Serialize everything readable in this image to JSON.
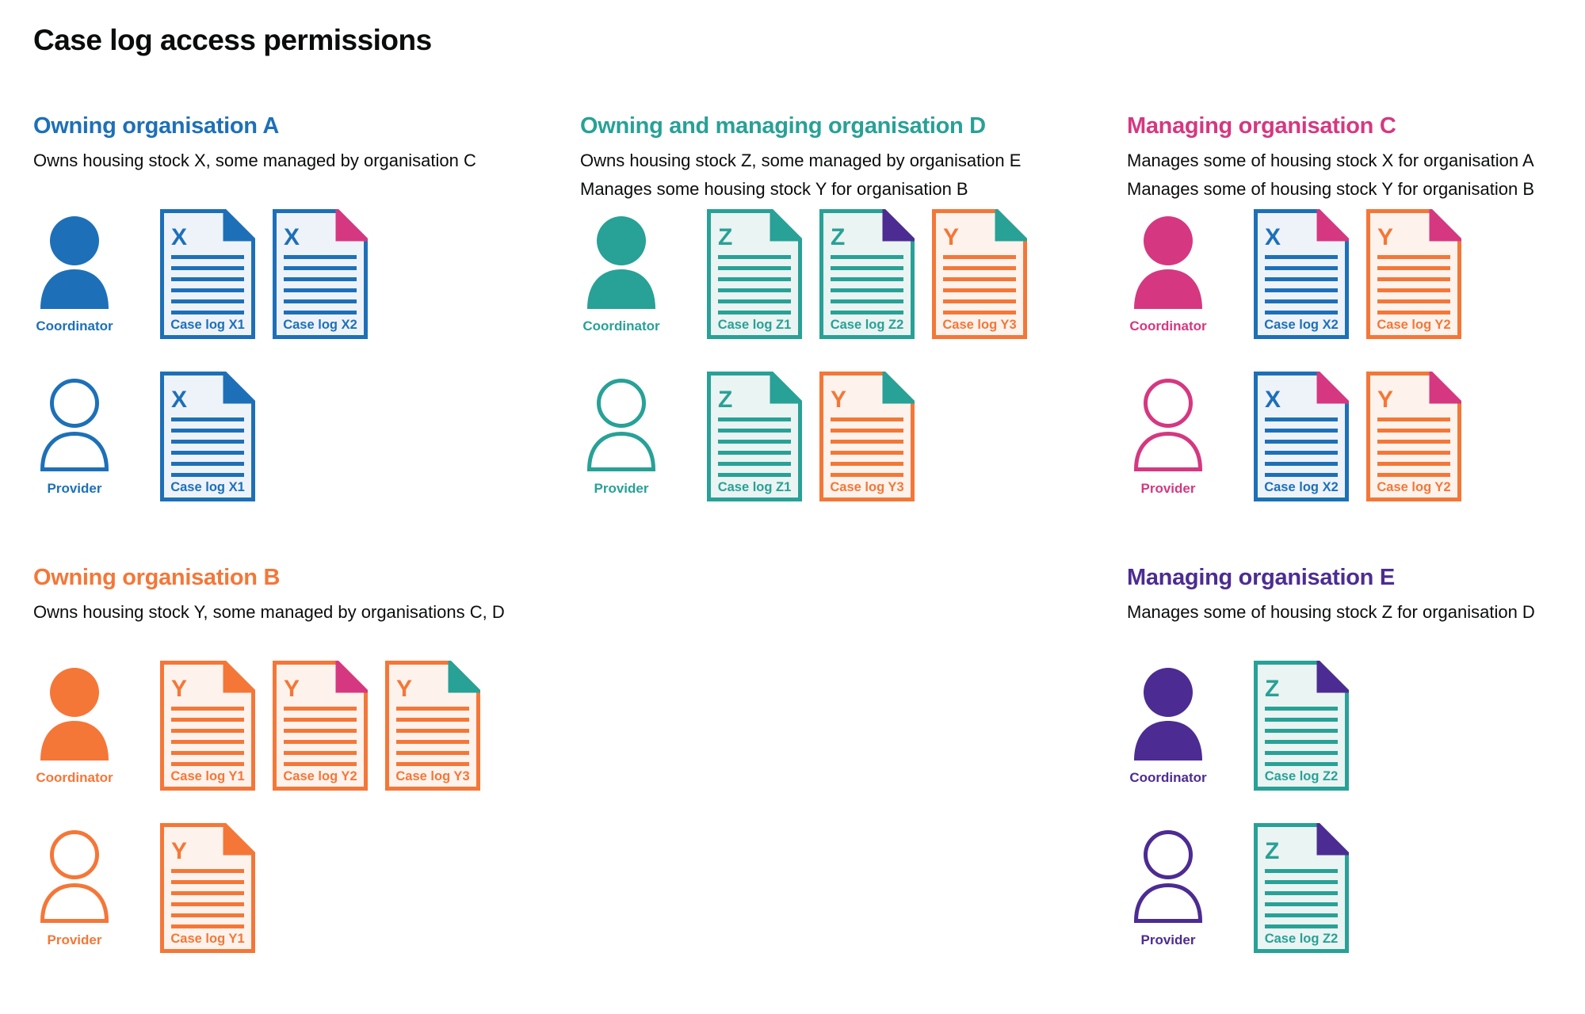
{
  "title": "Case log access permissions",
  "colors": {
    "blue": "#1d70b8",
    "orange": "#f47738",
    "teal": "#28a197",
    "pink": "#d53880",
    "purple": "#4c2c92",
    "text": "#0b0c0c"
  },
  "tints": {
    "blue": "#eef3fa",
    "orange": "#fdf3ec",
    "teal": "#eaf4f2"
  },
  "role_labels": {
    "coordinator": "Coordinator",
    "provider": "Provider"
  },
  "sections": [
    {
      "id": "owning-organisation-a",
      "title": "Owning organisation A",
      "color": "blue",
      "description": [
        "Owns housing stock X, some managed by organisation C"
      ],
      "grid": {
        "column": 0,
        "row": 0
      },
      "rows": [
        {
          "role": "coordinator",
          "documents": [
            {
              "letter": "X",
              "label": "Case log X1",
              "stock": "blue",
              "fold": "blue"
            },
            {
              "letter": "X",
              "label": "Case log X2",
              "stock": "blue",
              "fold": "pink"
            }
          ]
        },
        {
          "role": "provider",
          "documents": [
            {
              "letter": "X",
              "label": "Case log X1",
              "stock": "blue",
              "fold": "blue"
            }
          ]
        }
      ]
    },
    {
      "id": "owning-and-managing-organisation-d",
      "title": "Owning and managing organisation D",
      "color": "teal",
      "description": [
        "Owns housing stock Z, some managed by organisation E",
        "Manages some housing stock Y for organisation B"
      ],
      "grid": {
        "column": 1,
        "row": 0
      },
      "rows": [
        {
          "role": "coordinator",
          "documents": [
            {
              "letter": "Z",
              "label": "Case log Z1",
              "stock": "teal",
              "fold": "teal"
            },
            {
              "letter": "Z",
              "label": "Case log Z2",
              "stock": "teal",
              "fold": "purple"
            },
            {
              "letter": "Y",
              "label": "Case log Y3",
              "stock": "orange",
              "fold": "teal"
            }
          ]
        },
        {
          "role": "provider",
          "documents": [
            {
              "letter": "Z",
              "label": "Case log Z1",
              "stock": "teal",
              "fold": "teal"
            },
            {
              "letter": "Y",
              "label": "Case log Y3",
              "stock": "orange",
              "fold": "teal"
            }
          ]
        }
      ]
    },
    {
      "id": "managing-organisation-c",
      "title": "Managing organisation C",
      "color": "pink",
      "description": [
        "Manages some of housing stock X for organisation A",
        "Manages some of housing stock Y for organisation B"
      ],
      "grid": {
        "column": 2,
        "row": 0
      },
      "rows": [
        {
          "role": "coordinator",
          "documents": [
            {
              "letter": "X",
              "label": "Case log X2",
              "stock": "blue",
              "fold": "pink"
            },
            {
              "letter": "Y",
              "label": "Case log Y2",
              "stock": "orange",
              "fold": "pink"
            }
          ]
        },
        {
          "role": "provider",
          "documents": [
            {
              "letter": "X",
              "label": "Case log X2",
              "stock": "blue",
              "fold": "pink"
            },
            {
              "letter": "Y",
              "label": "Case log Y2",
              "stock": "orange",
              "fold": "pink"
            }
          ]
        }
      ]
    },
    {
      "id": "owning-organisation-b",
      "title": "Owning organisation B",
      "color": "orange",
      "description": [
        "Owns housing stock Y, some managed by organisations C, D"
      ],
      "grid": {
        "column": 0,
        "row": 1
      },
      "rows": [
        {
          "role": "coordinator",
          "documents": [
            {
              "letter": "Y",
              "label": "Case log Y1",
              "stock": "orange",
              "fold": "orange"
            },
            {
              "letter": "Y",
              "label": "Case log Y2",
              "stock": "orange",
              "fold": "pink"
            },
            {
              "letter": "Y",
              "label": "Case log Y3",
              "stock": "orange",
              "fold": "teal"
            }
          ]
        },
        {
          "role": "provider",
          "documents": [
            {
              "letter": "Y",
              "label": "Case log Y1",
              "stock": "orange",
              "fold": "orange"
            }
          ]
        }
      ]
    },
    {
      "id": "managing-organisation-e",
      "title": "Managing organisation E",
      "color": "purple",
      "description": [
        "Manages some of housing stock Z for organisation D"
      ],
      "grid": {
        "column": 2,
        "row": 1
      },
      "rows": [
        {
          "role": "coordinator",
          "documents": [
            {
              "letter": "Z",
              "label": "Case log Z2",
              "stock": "teal",
              "fold": "purple"
            }
          ]
        },
        {
          "role": "provider",
          "documents": [
            {
              "letter": "Z",
              "label": "Case log Z2",
              "stock": "teal",
              "fold": "purple"
            }
          ]
        }
      ]
    }
  ]
}
